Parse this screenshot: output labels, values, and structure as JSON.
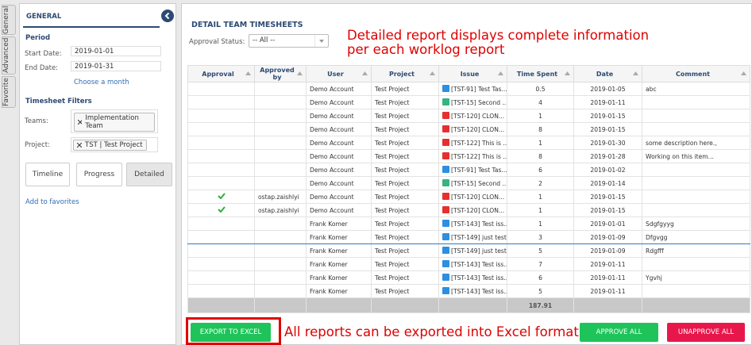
{
  "side_tabs": [
    "General",
    "Advanced",
    "Favorite"
  ],
  "sidebar": {
    "title": "GENERAL",
    "period": {
      "heading": "Period",
      "start_label": "Start Date:",
      "start": "2019-01-01",
      "end_label": "End Date:",
      "end": "2019-01-31",
      "choose_month": "Choose a month"
    },
    "filters": {
      "heading": "Timesheet Filters",
      "teams_label": "Teams:",
      "teams": "Implementation Team",
      "project_label": "Project:",
      "project": "TST | Test Project"
    },
    "views": [
      "Timeline",
      "Progress",
      "Detailed"
    ],
    "add_favorites": "Add to favorites"
  },
  "main": {
    "title": "DETAIL TEAM TIMESHEETS",
    "approval_label": "Approval Status:",
    "approval_value": "-- All --",
    "note_lines": [
      "Detailed report displays complete information",
      "per each worklog report"
    ],
    "export_note": "All reports can be exported into Excel format"
  },
  "table": {
    "columns": [
      "Approval",
      "Approved by",
      "User",
      "Project",
      "Issue",
      "Time Spent",
      "Date",
      "Comment"
    ],
    "rows": [
      {
        "user": "Demo Account",
        "project": "Test Project",
        "issue_type": "task",
        "issue": "[TST-91] Test Tas...",
        "time_spent": 0.5,
        "date": "2019-01-05",
        "comment": "abc"
      },
      {
        "user": "Demo Account",
        "project": "Test Project",
        "issue_type": "story",
        "issue": "[TST-15] Second ...",
        "time_spent": 4,
        "date": "2019-01-11"
      },
      {
        "user": "Demo Account",
        "project": "Test Project",
        "issue_type": "bug",
        "issue": "[TST-120] CLON...",
        "time_spent": 1,
        "date": "2019-01-15"
      },
      {
        "user": "Demo Account",
        "project": "Test Project",
        "issue_type": "bug",
        "issue": "[TST-120] CLON...",
        "time_spent": 8,
        "date": "2019-01-15"
      },
      {
        "user": "Demo Account",
        "project": "Test Project",
        "issue_type": "bug",
        "issue": "[TST-122] This is ...",
        "time_spent": 1,
        "date": "2019-01-30",
        "comment": "some description here.,"
      },
      {
        "user": "Demo Account",
        "project": "Test Project",
        "issue_type": "bug",
        "issue": "[TST-122] This is ...",
        "time_spent": 8,
        "date": "2019-01-28",
        "comment": "Working on this item..."
      },
      {
        "user": "Demo Account",
        "project": "Test Project",
        "issue_type": "task",
        "issue": "[TST-91] Test Tas...",
        "time_spent": 6,
        "date": "2019-01-02"
      },
      {
        "user": "Demo Account",
        "project": "Test Project",
        "issue_type": "story",
        "issue": "[TST-15] Second ...",
        "time_spent": 2,
        "date": "2019-01-14"
      },
      {
        "approved": true,
        "approved_by": "ostap.zaishlyi",
        "user": "Demo Account",
        "project": "Test Project",
        "issue_type": "bug",
        "issue": "[TST-120] CLON...",
        "time_spent": 1,
        "date": "2019-01-15"
      },
      {
        "approved": true,
        "approved_by": "ostap.zaishlyi",
        "user": "Demo Account",
        "project": "Test Project",
        "issue_type": "bug",
        "issue": "[TST-120] CLON...",
        "time_spent": 1,
        "date": "2019-01-15"
      },
      {
        "user": "Frank Komer",
        "project": "Test Project",
        "issue_type": "task",
        "issue": "[TST-143] Test iss...",
        "time_spent": 1,
        "date": "2019-01-01",
        "comment": "Sdgfgyyg"
      },
      {
        "highlighted": true,
        "user": "Frank Komer",
        "project": "Test Project",
        "issue_type": "task",
        "issue": "[TST-149] just test",
        "time_spent": 3,
        "date": "2019-01-09",
        "comment": "Dfgvgg"
      },
      {
        "user": "Frank Komer",
        "project": "Test Project",
        "issue_type": "task",
        "issue": "[TST-149] just test",
        "time_spent": 5,
        "date": "2019-01-09",
        "comment": "Rdgfff"
      },
      {
        "user": "Frank Komer",
        "project": "Test Project",
        "issue_type": "task",
        "issue": "[TST-143] Test iss...",
        "time_spent": 7,
        "date": "2019-01-11"
      },
      {
        "user": "Frank Komer",
        "project": "Test Project",
        "issue_type": "task",
        "issue": "[TST-143] Test iss...",
        "time_spent": 6,
        "date": "2019-01-11",
        "comment": "Ygvhj"
      },
      {
        "user": "Frank Komer",
        "project": "Test Project",
        "issue_type": "task",
        "issue": "[TST-143] Test iss...",
        "time_spent": 5,
        "date": "2019-01-11"
      }
    ],
    "total": 187.91
  },
  "buttons": {
    "export": "EXPORT TO EXCEL",
    "approve": "APPROVE ALL",
    "unapprove": "UNAPPROVE ALL"
  }
}
